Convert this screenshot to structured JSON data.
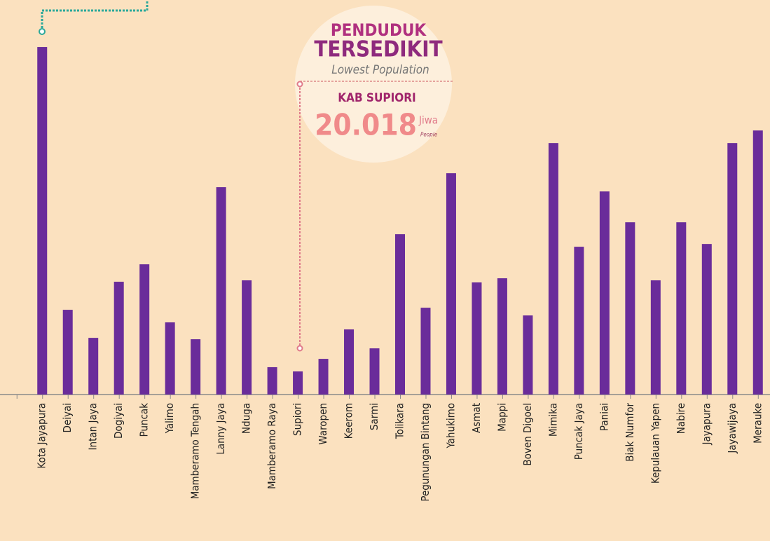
{
  "chart_data": {
    "type": "bar",
    "categories": [
      "Kota Jayapura",
      "Deiyai",
      "Intan Jaya",
      "Dogiyai",
      "Puncak",
      "Yalimo",
      "Mamberamo Tengah",
      "Lanny Jaya",
      "Nduga",
      "Mamberamo Raya",
      "Supiori",
      "Waropen",
      "Keerom",
      "Sarmi",
      "Tolikara",
      "Pegunungan Bintang",
      "Yahukimo",
      "Asmat",
      "Mappi",
      "Boven Digoel",
      "Mimika",
      "Puncak Jaya",
      "Paniai",
      "Biak Numfor",
      "Kepulauan Yapen",
      "Nabire",
      "Jayapura",
      "Jayawijaya",
      "Merauke"
    ],
    "values": [
      301000,
      73400,
      49100,
      97700,
      112800,
      62500,
      47900,
      179600,
      98900,
      23700,
      20018,
      30900,
      56400,
      40000,
      138900,
      75200,
      191700,
      97100,
      100700,
      68500,
      217800,
      128000,
      175900,
      149200,
      98900,
      149200,
      130400,
      217800,
      228700
    ],
    "color": "#6a2c9a",
    "ylim": [
      0,
      341700
    ],
    "annotation": {
      "line1": "PENDUDUK",
      "line2": "TERSEDIKIT",
      "subtitle": "Lowest Population",
      "region": "KAB SUPIORI",
      "value_label": "20.018",
      "unit": "Jiwa",
      "unit_en": "People"
    }
  }
}
